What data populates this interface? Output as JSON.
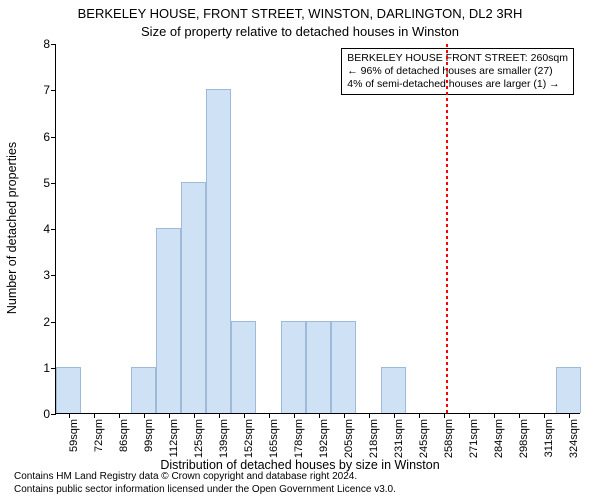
{
  "chart": {
    "type": "histogram",
    "title_line1": "BERKELEY HOUSE, FRONT STREET, WINSTON, DARLINGTON, DL2 3RH",
    "title_line2": "Size of property relative to detached houses in Winston",
    "title_fontsize": 13,
    "ylabel": "Number of detached properties",
    "xlabel": "Distribution of detached houses by size in Winston",
    "label_fontsize": 12.5,
    "ylim": [
      0,
      8
    ],
    "ytick_step": 1,
    "x_categories": [
      "59sqm",
      "72sqm",
      "86sqm",
      "99sqm",
      "112sqm",
      "125sqm",
      "139sqm",
      "152sqm",
      "165sqm",
      "178sqm",
      "192sqm",
      "205sqm",
      "218sqm",
      "231sqm",
      "245sqm",
      "258sqm",
      "271sqm",
      "284sqm",
      "298sqm",
      "311sqm",
      "324sqm"
    ],
    "values": [
      1,
      0,
      0,
      1,
      4,
      5,
      7,
      2,
      0,
      2,
      2,
      2,
      0,
      1,
      0,
      0,
      0,
      0,
      0,
      0,
      1
    ],
    "bar_fill": "#cfe1f4",
    "bar_stroke": "#9fbad8",
    "background_color": "#ffffff",
    "axis_color": "#000000",
    "xtick_fontsize": 11,
    "ytick_fontsize": 12,
    "reference_line": {
      "x_index": 15.15,
      "color": "#ff0000",
      "width": 2,
      "dash": "2,2"
    },
    "legend": {
      "line1": "BERKELEY HOUSE FRONT STREET: 260sqm",
      "line2": "← 96% of detached houses are smaller (27)",
      "line3": "4% of semi-detached houses are larger (1) →",
      "fontsize": 10.5,
      "border_color": "#000000",
      "background": "#ffffff"
    },
    "credits": {
      "line1": "Contains HM Land Registry data © Crown copyright and database right 2024.",
      "line2": "Contains public sector information licensed under the Open Government Licence v3.0.",
      "fontsize": 10
    }
  }
}
